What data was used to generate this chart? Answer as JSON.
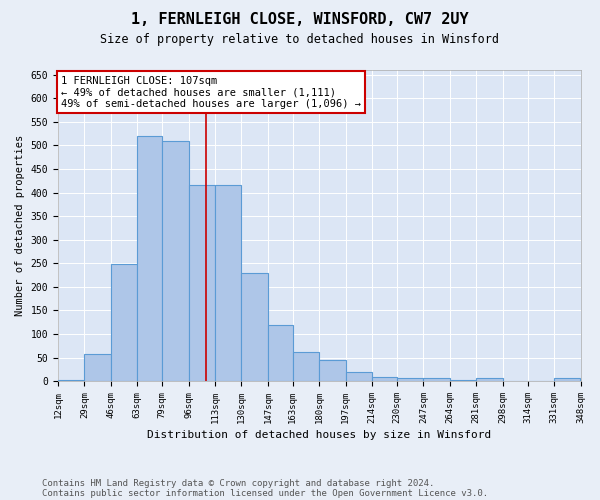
{
  "title": "1, FERNLEIGH CLOSE, WINSFORD, CW7 2UY",
  "subtitle": "Size of property relative to detached houses in Winsford",
  "xlabel": "Distribution of detached houses by size in Winsford",
  "ylabel": "Number of detached properties",
  "bin_edges": [
    12,
    29,
    46,
    63,
    79,
    96,
    113,
    130,
    147,
    163,
    180,
    197,
    214,
    230,
    247,
    264,
    281,
    298,
    314,
    331,
    348
  ],
  "bar_heights": [
    3,
    57,
    248,
    521,
    510,
    415,
    415,
    230,
    120,
    62,
    45,
    20,
    9,
    7,
    7,
    2,
    7,
    0,
    0,
    7
  ],
  "bar_color": "#aec6e8",
  "bar_edge_color": "#5b9bd5",
  "bar_linewidth": 0.8,
  "bg_color": "#e8eef7",
  "plot_bg_color": "#dce6f5",
  "grid_color": "#ffffff",
  "annotation_box_edgecolor": "#cc0000",
  "property_line_color": "#cc0000",
  "property_size": 107,
  "annotation_line1": "1 FERNLEIGH CLOSE: 107sqm",
  "annotation_line2": "← 49% of detached houses are smaller (1,111)",
  "annotation_line3": "49% of semi-detached houses are larger (1,096) →",
  "footer_line1": "Contains HM Land Registry data © Crown copyright and database right 2024.",
  "footer_line2": "Contains public sector information licensed under the Open Government Licence v3.0.",
  "ylim": [
    0,
    660
  ],
  "yticks": [
    0,
    50,
    100,
    150,
    200,
    250,
    300,
    350,
    400,
    450,
    500,
    550,
    600,
    650
  ]
}
